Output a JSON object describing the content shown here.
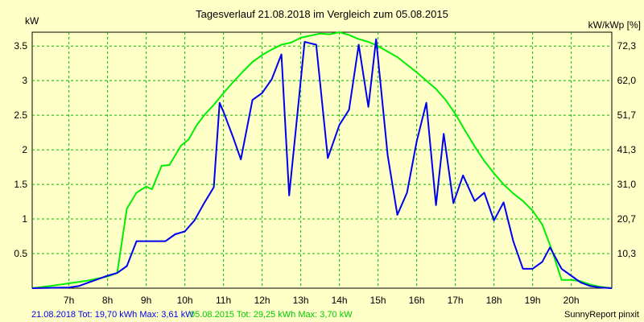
{
  "chart_data": {
    "type": "line",
    "title": "Tagesverlauf 21.08.2018 im Vergleich zum 05.08.2015",
    "y_left_label": "kW",
    "y_right_label": "kW/kWp [%]",
    "x_ticks": [
      "7h",
      "8h",
      "9h",
      "10h",
      "11h",
      "12h",
      "13h",
      "14h",
      "15h",
      "16h",
      "17h",
      "18h",
      "19h",
      "20h"
    ],
    "x_tick_hours": [
      7,
      8,
      9,
      10,
      11,
      12,
      13,
      14,
      15,
      16,
      17,
      18,
      19,
      20
    ],
    "xlim": [
      6.05,
      21.05
    ],
    "ylim": [
      0,
      3.7
    ],
    "y_left_ticks": [
      "0.5",
      "1",
      "1.5",
      "2",
      "2.5",
      "3",
      "3.5"
    ],
    "y_left_tick_values": [
      0.5,
      1,
      1.5,
      2,
      2.5,
      3,
      3.5
    ],
    "y_right_ticks": [
      "10,3",
      "20,7",
      "31,0",
      "41,3",
      "51,7",
      "62,0",
      "72,3"
    ],
    "y_right_tick_values": [
      0.5,
      1,
      1.5,
      2,
      2.5,
      3,
      3.5
    ],
    "grid": true,
    "series": [
      {
        "name": "21.08.2018",
        "color": "#0000ee",
        "points": [
          [
            6.05,
            0
          ],
          [
            7.0,
            0.01
          ],
          [
            7.25,
            0.03
          ],
          [
            7.5,
            0.08
          ],
          [
            7.75,
            0.13
          ],
          [
            8.0,
            0.18
          ],
          [
            8.25,
            0.22
          ],
          [
            8.5,
            0.32
          ],
          [
            8.75,
            0.68
          ],
          [
            9.0,
            0.68
          ],
          [
            9.25,
            0.68
          ],
          [
            9.5,
            0.68
          ],
          [
            9.75,
            0.78
          ],
          [
            10.0,
            0.82
          ],
          [
            10.25,
            0.98
          ],
          [
            10.5,
            1.23
          ],
          [
            10.75,
            1.46
          ],
          [
            10.9,
            2.68
          ],
          [
            11.0,
            2.55
          ],
          [
            11.25,
            2.18
          ],
          [
            11.45,
            1.86
          ],
          [
            11.75,
            2.72
          ],
          [
            12.0,
            2.82
          ],
          [
            12.25,
            3.02
          ],
          [
            12.5,
            3.38
          ],
          [
            12.7,
            1.34
          ],
          [
            12.95,
            2.72
          ],
          [
            13.1,
            3.56
          ],
          [
            13.25,
            3.54
          ],
          [
            13.4,
            3.52
          ],
          [
            13.7,
            1.88
          ],
          [
            14.0,
            2.36
          ],
          [
            14.25,
            2.58
          ],
          [
            14.5,
            3.52
          ],
          [
            14.75,
            2.62
          ],
          [
            14.95,
            3.6
          ],
          [
            15.25,
            1.92
          ],
          [
            15.5,
            1.06
          ],
          [
            15.75,
            1.38
          ],
          [
            16.0,
            2.12
          ],
          [
            16.25,
            2.68
          ],
          [
            16.5,
            1.2
          ],
          [
            16.7,
            2.23
          ],
          [
            16.95,
            1.23
          ],
          [
            17.2,
            1.63
          ],
          [
            17.5,
            1.26
          ],
          [
            17.75,
            1.38
          ],
          [
            18.0,
            0.98
          ],
          [
            18.25,
            1.24
          ],
          [
            18.5,
            0.68
          ],
          [
            18.75,
            0.28
          ],
          [
            19.0,
            0.28
          ],
          [
            19.25,
            0.38
          ],
          [
            19.45,
            0.59
          ],
          [
            19.75,
            0.28
          ],
          [
            20.0,
            0.18
          ],
          [
            20.25,
            0.08
          ],
          [
            20.5,
            0.03
          ],
          [
            20.75,
            0.01
          ],
          [
            21.05,
            0
          ]
        ]
      },
      {
        "name": "05.08.2015",
        "color": "#00ee00",
        "points": [
          [
            6.05,
            0
          ],
          [
            6.5,
            0.03
          ],
          [
            7.0,
            0.07
          ],
          [
            7.5,
            0.11
          ],
          [
            8.0,
            0.17
          ],
          [
            8.25,
            0.22
          ],
          [
            8.5,
            1.15
          ],
          [
            8.75,
            1.38
          ],
          [
            9.0,
            1.47
          ],
          [
            9.15,
            1.43
          ],
          [
            9.4,
            1.77
          ],
          [
            9.6,
            1.78
          ],
          [
            9.9,
            2.06
          ],
          [
            10.1,
            2.15
          ],
          [
            10.3,
            2.35
          ],
          [
            10.5,
            2.5
          ],
          [
            10.75,
            2.65
          ],
          [
            11.0,
            2.82
          ],
          [
            11.25,
            2.98
          ],
          [
            11.5,
            3.13
          ],
          [
            11.75,
            3.27
          ],
          [
            12.0,
            3.37
          ],
          [
            12.25,
            3.45
          ],
          [
            12.5,
            3.52
          ],
          [
            12.75,
            3.55
          ],
          [
            13.0,
            3.62
          ],
          [
            13.25,
            3.65
          ],
          [
            13.5,
            3.68
          ],
          [
            13.75,
            3.67
          ],
          [
            14.0,
            3.7
          ],
          [
            14.25,
            3.66
          ],
          [
            14.5,
            3.6
          ],
          [
            14.75,
            3.56
          ],
          [
            15.0,
            3.5
          ],
          [
            15.25,
            3.42
          ],
          [
            15.5,
            3.34
          ],
          [
            15.75,
            3.23
          ],
          [
            16.0,
            3.12
          ],
          [
            16.25,
            3.0
          ],
          [
            16.5,
            2.88
          ],
          [
            16.75,
            2.72
          ],
          [
            17.0,
            2.52
          ],
          [
            17.25,
            2.28
          ],
          [
            17.5,
            2.05
          ],
          [
            17.75,
            1.84
          ],
          [
            18.0,
            1.66
          ],
          [
            18.25,
            1.5
          ],
          [
            18.5,
            1.37
          ],
          [
            18.75,
            1.26
          ],
          [
            19.0,
            1.12
          ],
          [
            19.25,
            0.92
          ],
          [
            19.5,
            0.55
          ],
          [
            19.75,
            0.12
          ],
          [
            20.0,
            0.12
          ],
          [
            20.25,
            0.1
          ],
          [
            20.5,
            0.05
          ],
          [
            20.75,
            0.02
          ],
          [
            21.05,
            0
          ]
        ]
      }
    ],
    "footer": {
      "left": "21.08.2018 Tot: 19,70 kWh Max: 3,61 kW",
      "middle": "05.08.2015 Tot: 29,25 kWh Max: 3,70 kW",
      "right": "SunnyReport pinxit",
      "left_color": "#0000ee",
      "middle_color": "#00cc00"
    }
  }
}
